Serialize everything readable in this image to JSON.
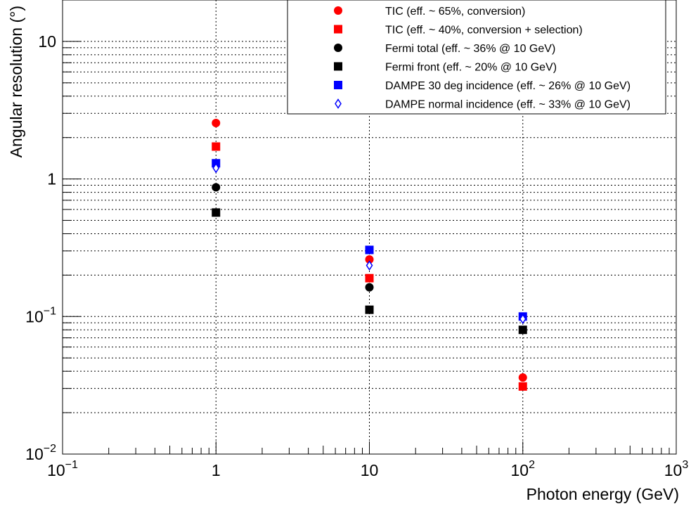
{
  "chart_data": {
    "type": "scatter",
    "title": "",
    "xlabel": "Photon energy (GeV)",
    "ylabel": "Angular resolution (°)",
    "xscale": "log",
    "yscale": "log",
    "xlim": [
      0.1,
      1000
    ],
    "ylim": [
      0.01,
      20
    ],
    "grid": true,
    "legend_position": "top-right",
    "x_ticks": [
      {
        "value": 0.1,
        "mantissa": "10",
        "exp": "−1"
      },
      {
        "value": 1,
        "mantissa": "1",
        "exp": ""
      },
      {
        "value": 10,
        "mantissa": "10",
        "exp": ""
      },
      {
        "value": 100,
        "mantissa": "10",
        "exp": "2"
      },
      {
        "value": 1000,
        "mantissa": "10",
        "exp": "3"
      }
    ],
    "y_ticks": [
      {
        "value": 0.01,
        "mantissa": "10",
        "exp": "−2"
      },
      {
        "value": 0.1,
        "mantissa": "10",
        "exp": "−1"
      },
      {
        "value": 1,
        "mantissa": "1",
        "exp": ""
      },
      {
        "value": 10,
        "mantissa": "10",
        "exp": ""
      }
    ],
    "series": [
      {
        "name": "TIC (eff. ~ 65%, conversion)",
        "marker": "circle",
        "color": "#ff0000",
        "x": [
          1,
          10,
          100
        ],
        "y": [
          2.55,
          0.26,
          0.036
        ]
      },
      {
        "name": "TIC (eff. ~ 40%, conversion + selection)",
        "marker": "square",
        "color": "#ff0000",
        "x": [
          1,
          10,
          100
        ],
        "y": [
          1.72,
          0.19,
          0.031
        ]
      },
      {
        "name": "Fermi total (eff. ~ 36% @ 10 GeV)",
        "marker": "circle",
        "color": "#000000",
        "x": [
          1,
          10
        ],
        "y": [
          0.87,
          0.163
        ]
      },
      {
        "name": "Fermi front (eff. ~ 20% @ 10 GeV)",
        "marker": "square",
        "color": "#000000",
        "x": [
          1,
          10,
          100
        ],
        "y": [
          0.57,
          0.112,
          0.08
        ]
      },
      {
        "name": "DAMPE 30 deg incidence (eff. ~ 26% @ 10 GeV)",
        "marker": "square",
        "color": "#0000ff",
        "x": [
          1,
          10,
          100
        ],
        "y": [
          1.3,
          0.305,
          0.1
        ]
      },
      {
        "name": "DAMPE normal incidence (eff. ~ 33% @ 10 GeV)",
        "marker": "diamond-open",
        "color": "#0000ff",
        "x": [
          1,
          10,
          100
        ],
        "y": [
          1.2,
          0.235,
          0.096
        ]
      }
    ]
  }
}
